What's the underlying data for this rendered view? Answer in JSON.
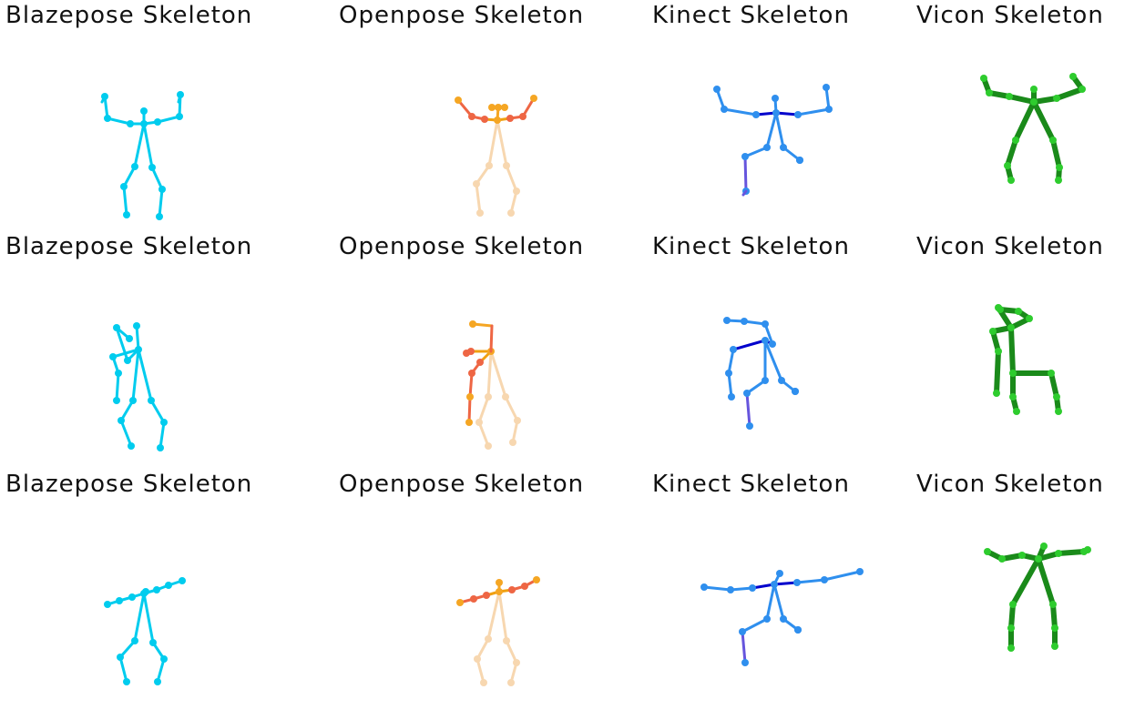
{
  "grid": {
    "columns": [
      {
        "title": "Blazepose Skeleton",
        "style": "blazepose"
      },
      {
        "title": "Openpose Skeleton",
        "style": "openpose"
      },
      {
        "title": "Kinect Skeleton",
        "style": "kinect"
      },
      {
        "title": "Vicon Skeleton",
        "style": "vicon"
      }
    ],
    "rows": [
      {
        "pose": "arms-raised"
      },
      {
        "pose": "walking-side"
      },
      {
        "pose": "arms-extended"
      }
    ]
  },
  "colors": {
    "blazepose": "#00ccee",
    "openpose_head": "#f5a623",
    "openpose_arm": "#ee6644",
    "openpose_torso": "#f0a010",
    "openpose_leg": "#f7d7b0",
    "kinect_limb": "#2f8fee",
    "kinect_shoulder": "#0000cc",
    "kinect_shin": "#6655dd",
    "vicon": "#1a8a1a",
    "vicon_joint": "#2ecc2e"
  }
}
